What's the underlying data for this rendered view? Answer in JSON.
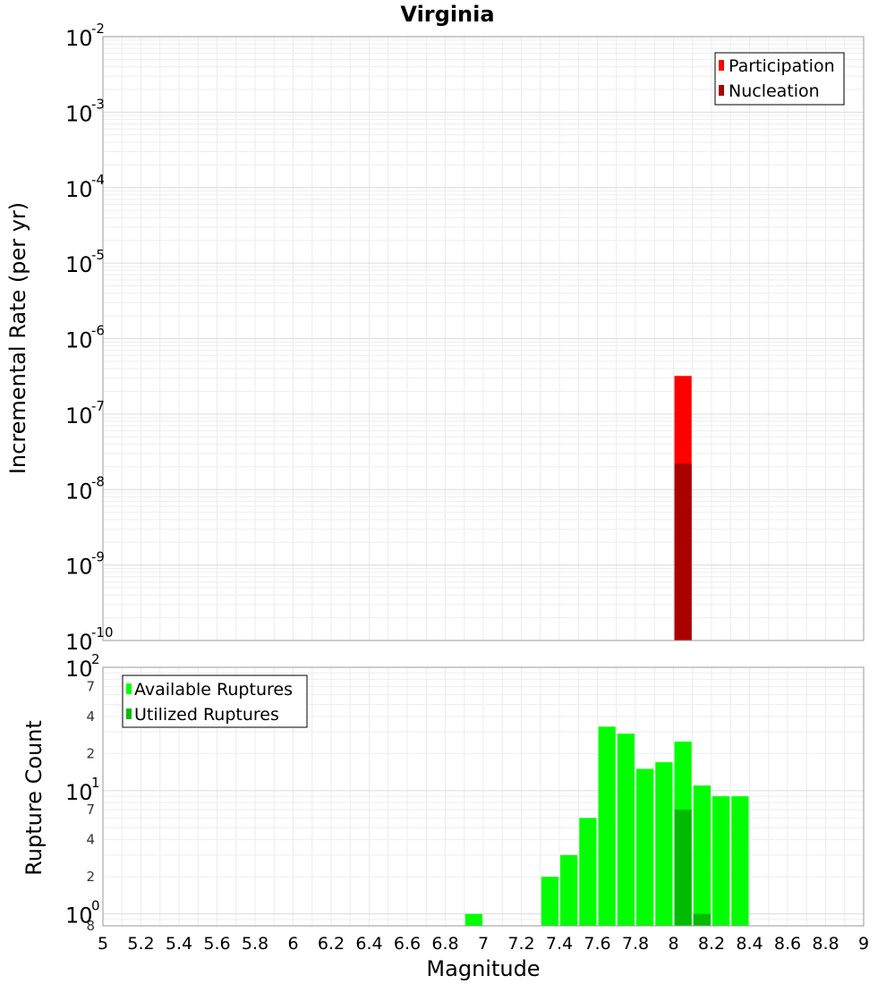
{
  "chart_data": [
    {
      "type": "bar",
      "title": "Virginia",
      "xlabel": "",
      "ylabel": "Incremental Rate (per yr)",
      "xlim": [
        5,
        9
      ],
      "ylim": [
        1e-10,
        0.01
      ],
      "yscale": "log",
      "grid": true,
      "legend_position": "top-right",
      "x_ticks": [
        5,
        5.2,
        5.4,
        5.6,
        5.8,
        6,
        6.2,
        6.4,
        6.6,
        6.8,
        7,
        7.2,
        7.4,
        7.6,
        7.8,
        8,
        8.2,
        8.4,
        8.6,
        8.8,
        9
      ],
      "y_tick_labels": [
        {
          "base": "10",
          "exp": "-2",
          "value": 0.01
        },
        {
          "base": "10",
          "exp": "-3",
          "value": 0.001
        },
        {
          "base": "10",
          "exp": "-4",
          "value": 0.0001
        },
        {
          "base": "10",
          "exp": "-5",
          "value": 1e-05
        },
        {
          "base": "10",
          "exp": "-6",
          "value": 1e-06
        },
        {
          "base": "10",
          "exp": "-7",
          "value": 1e-07
        },
        {
          "base": "10",
          "exp": "-8",
          "value": 1e-08
        },
        {
          "base": "10",
          "exp": "-9",
          "value": 1e-09
        },
        {
          "base": "10",
          "exp": "-10",
          "value": 1e-10
        }
      ],
      "bar_width": 0.1,
      "series": [
        {
          "name": "Participation",
          "color": "#ff0000",
          "x": [
            8.05
          ],
          "values": [
            3.2e-07
          ]
        },
        {
          "name": "Nucleation",
          "color": "#aa0000",
          "x": [
            8.05
          ],
          "values": [
            2.2e-08
          ]
        }
      ]
    },
    {
      "type": "bar",
      "title": "",
      "xlabel": "Magnitude",
      "ylabel": "Rupture Count",
      "xlim": [
        5,
        9
      ],
      "ylim": [
        0.8,
        100
      ],
      "yscale": "log",
      "grid": true,
      "legend_position": "top-left",
      "x_ticks": [
        5,
        5.2,
        5.4,
        5.6,
        5.8,
        6,
        6.2,
        6.4,
        6.6,
        6.8,
        7,
        7.2,
        7.4,
        7.6,
        7.8,
        8,
        8.2,
        8.4,
        8.6,
        8.8,
        9
      ],
      "x_tick_labels": [
        "5",
        "5.2",
        "5.4",
        "5.6",
        "5.8",
        "6",
        "6.2",
        "6.4",
        "6.6",
        "6.8",
        "7",
        "7.2",
        "7.4",
        "7.6",
        "7.8",
        "8",
        "8.2",
        "8.4",
        "8.6",
        "8.8",
        "9"
      ],
      "y_tick_labels": [
        {
          "base": "10",
          "exp": "2",
          "value": 100
        },
        {
          "base": "10",
          "exp": "1",
          "value": 10
        },
        {
          "base": "10",
          "exp": "0",
          "value": 1
        }
      ],
      "y_minor_tick_labels": [
        {
          "label": "7",
          "value": 70
        },
        {
          "label": "4",
          "value": 40
        },
        {
          "label": "2",
          "value": 20
        },
        {
          "label": "7",
          "value": 7
        },
        {
          "label": "4",
          "value": 4
        },
        {
          "label": "2",
          "value": 2
        },
        {
          "label": "8",
          "value": 0.8
        }
      ],
      "bar_width": 0.1,
      "series": [
        {
          "name": "Available Ruptures",
          "color": "#00ff00",
          "x": [
            6.95,
            7.35,
            7.45,
            7.55,
            7.65,
            7.75,
            7.85,
            7.95,
            8.05,
            8.15,
            8.25,
            8.35
          ],
          "values": [
            1,
            2,
            3,
            6,
            33,
            29,
            15,
            17,
            25,
            11,
            9,
            9
          ]
        },
        {
          "name": "Utilized Ruptures",
          "color": "#00bb00",
          "x": [
            8.05,
            8.15
          ],
          "values": [
            7,
            1
          ]
        }
      ]
    }
  ]
}
